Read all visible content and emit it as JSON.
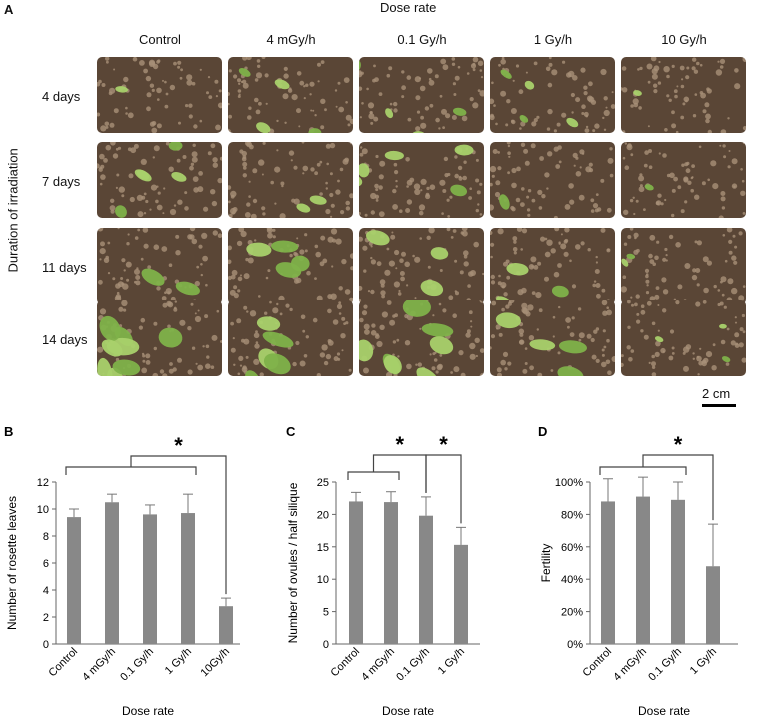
{
  "panelA": {
    "letter": "A",
    "top_title": "Dose rate",
    "side_title": "Duration of irradiation",
    "columns": [
      "Control",
      "4 mGy/h",
      "0.1 Gy/h",
      "1 Gy/h",
      "10 Gy/h"
    ],
    "rows": [
      "4 days",
      "7 days",
      "11 days",
      "14 days"
    ],
    "growth": [
      [
        0.25,
        0.35,
        0.3,
        0.25,
        0.1
      ],
      [
        0.45,
        0.5,
        0.5,
        0.45,
        0.12
      ],
      [
        0.75,
        0.8,
        0.75,
        0.65,
        0.12
      ],
      [
        0.95,
        0.95,
        0.95,
        0.8,
        0.1
      ]
    ],
    "scale_bar": "2 cm",
    "colors": {
      "soil": "#5a4636",
      "soil_light": "#a89078",
      "plant": "#7fb24a",
      "plant_light": "#a9d16b"
    }
  },
  "chart_data": [
    {
      "type": "bar",
      "letter": "B",
      "categories": [
        "Control",
        "4 mGy/h",
        "0.1 Gy/h",
        "1 Gy/h",
        "10Gy/h"
      ],
      "values": [
        9.4,
        10.5,
        9.6,
        9.7,
        2.8
      ],
      "errors": [
        0.6,
        0.6,
        0.7,
        1.4,
        0.6
      ],
      "ylabel": "Number of rosette leaves",
      "xlabel": "Dose rate",
      "ylim": [
        0,
        12
      ],
      "yticks": [
        "0",
        "2",
        "4",
        "6",
        "8",
        "10",
        "12"
      ],
      "significance": "*",
      "color": "#888888"
    },
    {
      "type": "bar",
      "letter": "C",
      "categories": [
        "Control",
        "4 mGy/h",
        "0.1 Gy/h",
        "1 Gy/h"
      ],
      "values": [
        22.0,
        21.9,
        19.8,
        15.3
      ],
      "errors": [
        1.4,
        1.6,
        2.9,
        2.7
      ],
      "ylabel": "Number of ovules / half silique",
      "xlabel": "Dose rate",
      "ylim": [
        0,
        25
      ],
      "yticks": [
        "0",
        "5",
        "10",
        "15",
        "20",
        "25"
      ],
      "significance": "*",
      "color": "#888888"
    },
    {
      "type": "bar",
      "letter": "D",
      "categories": [
        "Control",
        "4 mGy/h",
        "0.1 Gy/h",
        "1 Gy/h"
      ],
      "values": [
        88,
        91,
        89,
        48
      ],
      "errors": [
        14,
        12,
        11,
        26
      ],
      "ylabel": "Fertility",
      "xlabel": "Dose rate",
      "ylim": [
        0,
        100
      ],
      "yticks": [
        "0%",
        "20%",
        "40%",
        "60%",
        "80%",
        "100%"
      ],
      "significance": "*",
      "color": "#888888"
    }
  ]
}
